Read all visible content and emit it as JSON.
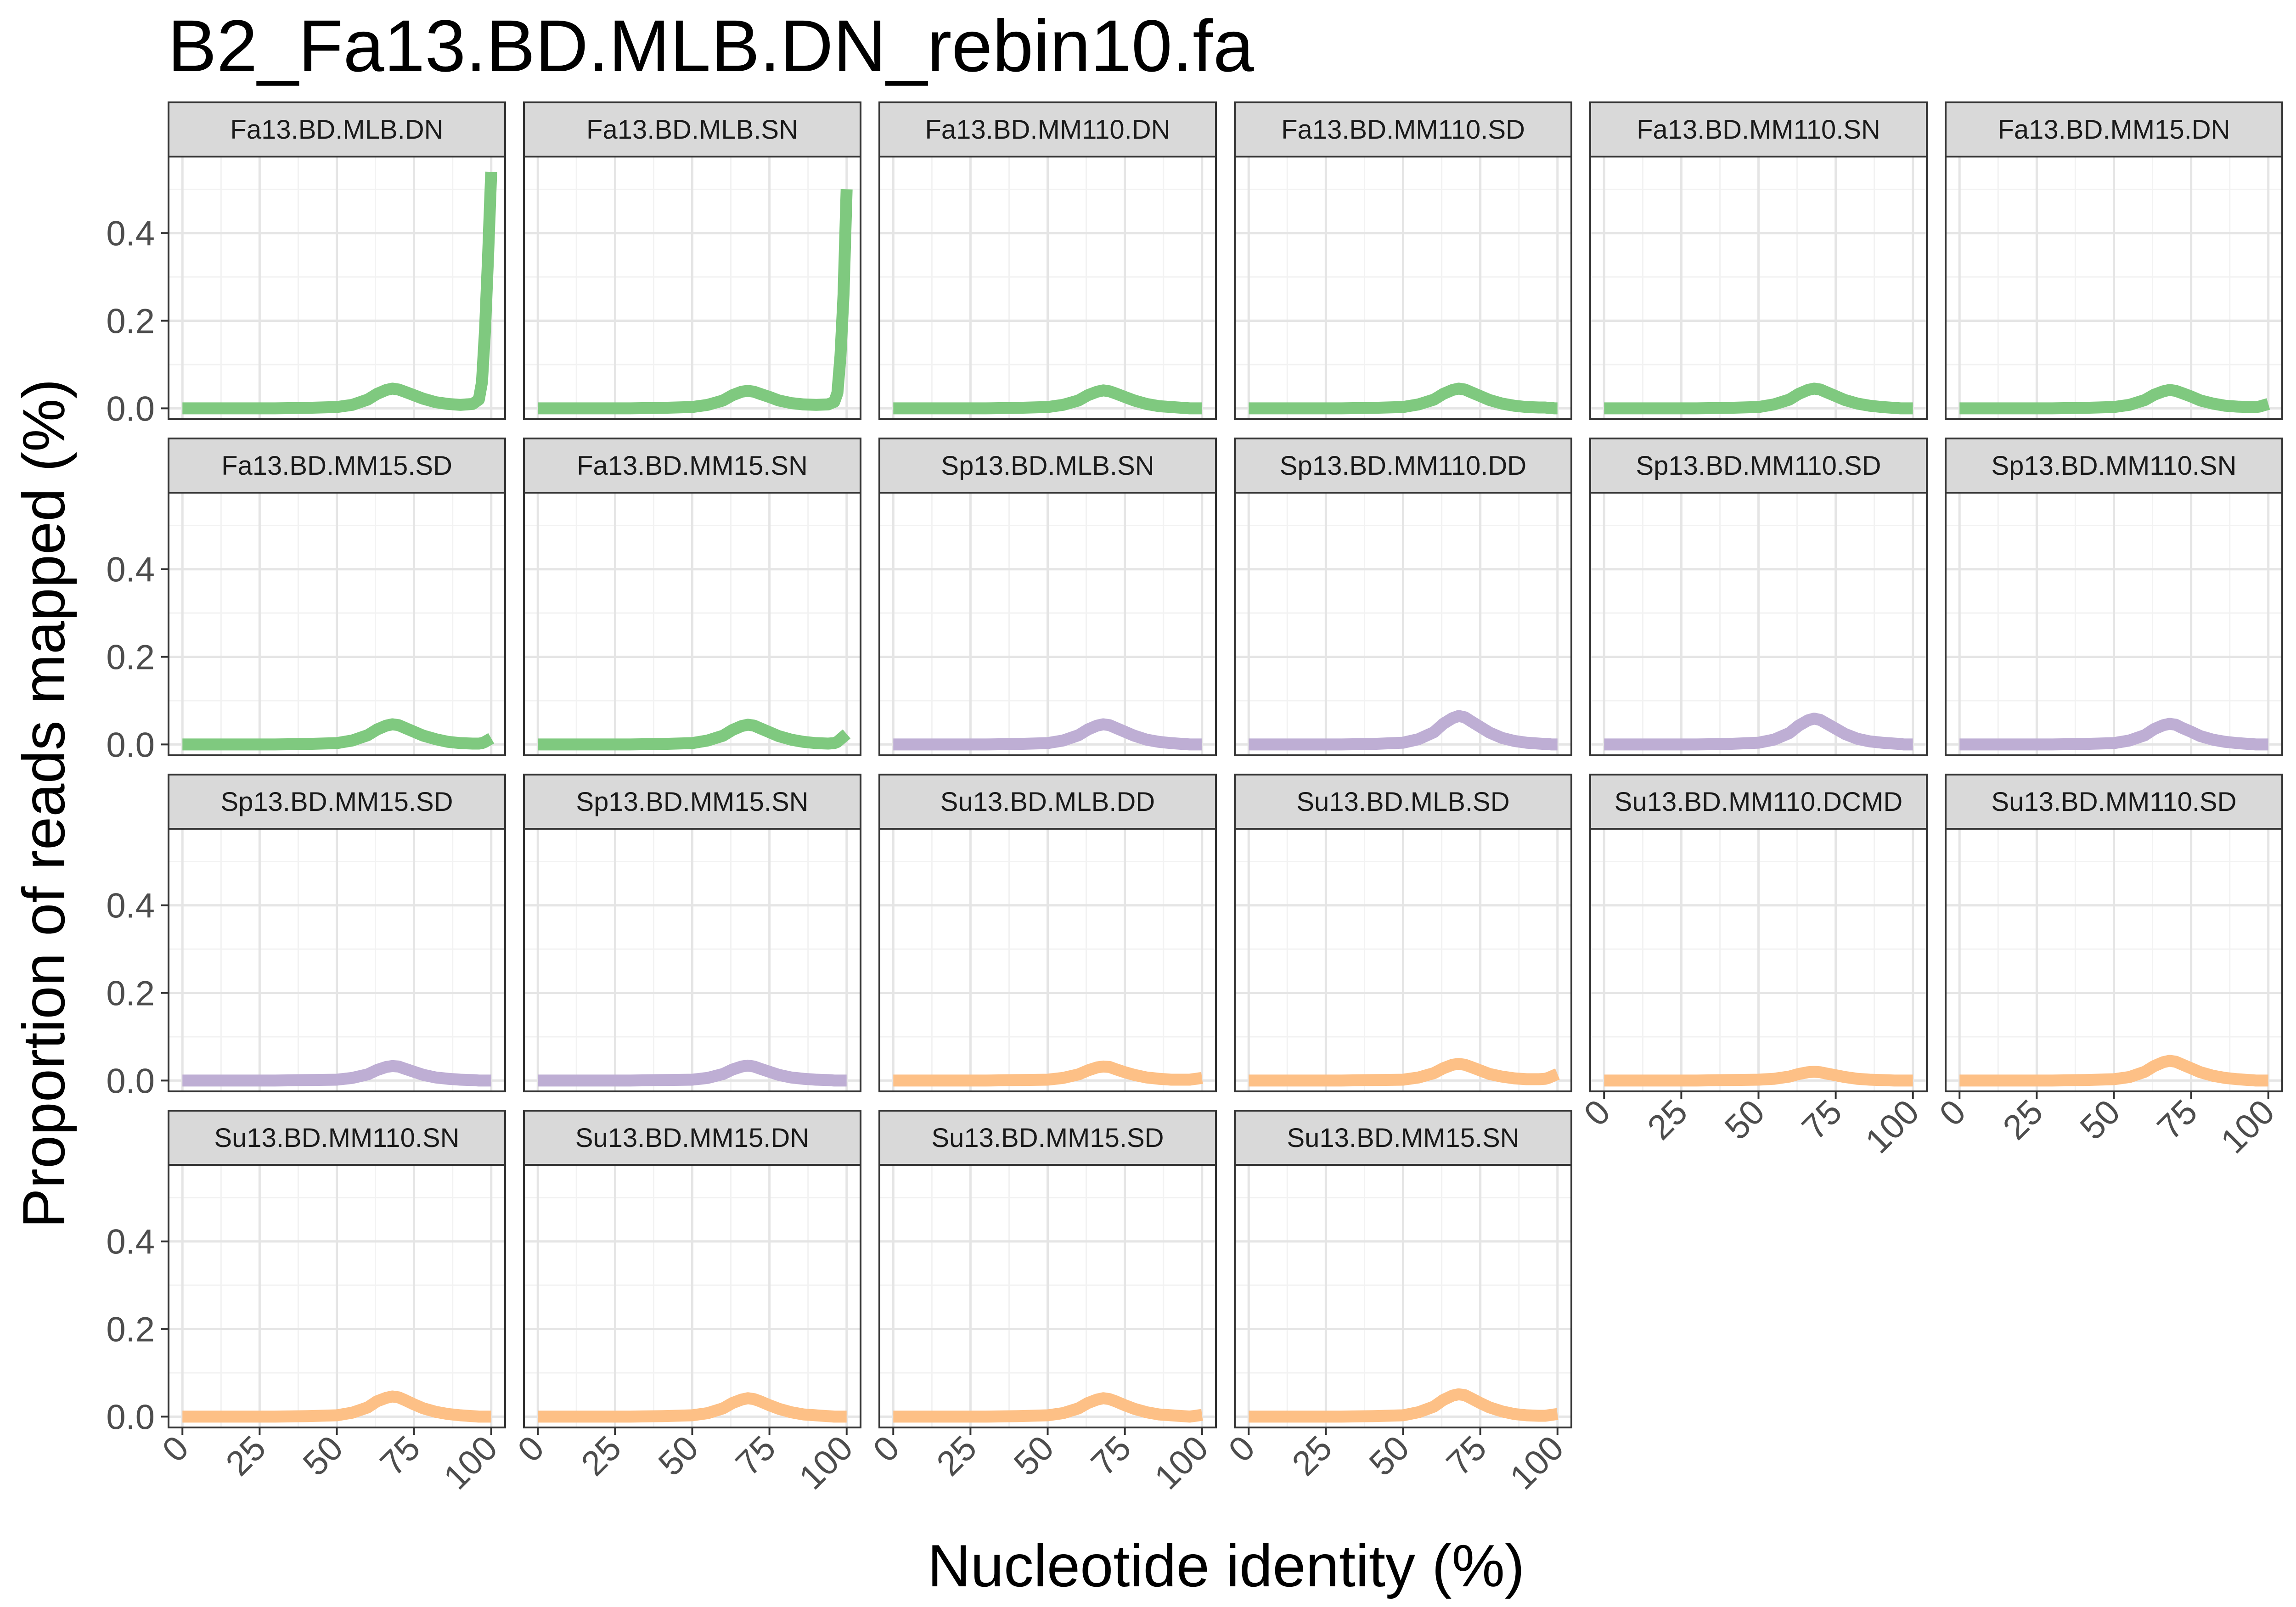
{
  "chart_data": {
    "type": "line",
    "title": "B2_Fa13.BD.MLB.DN_rebin10.fa",
    "xlabel": "Nucleotide identity (%)",
    "ylabel": "Proportion of reads mapped (%)",
    "xlim": [
      0,
      100
    ],
    "ylim": [
      0,
      0.55
    ],
    "x_ticks": [
      0,
      25,
      50,
      75,
      100
    ],
    "y_ticks": [
      0.0,
      0.2,
      0.4
    ],
    "y_tick_labels": [
      "0.0",
      "0.2",
      "0.4"
    ],
    "x": [
      0,
      10,
      20,
      30,
      40,
      50,
      55,
      60,
      63,
      66,
      68,
      70,
      72,
      75,
      78,
      82,
      86,
      90,
      94,
      96,
      97,
      98,
      99,
      100
    ],
    "colors": {
      "Fa": "#7fc97f",
      "Sp": "#beaed4",
      "Su": "#fdc086"
    },
    "panels": [
      {
        "name": "Fa13.BD.MLB.DN",
        "group": "Fa",
        "values": [
          0,
          0,
          0,
          0,
          0.001,
          0.003,
          0.008,
          0.02,
          0.033,
          0.042,
          0.045,
          0.043,
          0.038,
          0.03,
          0.022,
          0.014,
          0.01,
          0.008,
          0.01,
          0.02,
          0.06,
          0.18,
          0.35,
          0.54
        ]
      },
      {
        "name": "Fa13.BD.MLB.SN",
        "group": "Fa",
        "values": [
          0,
          0,
          0,
          0,
          0.001,
          0.003,
          0.008,
          0.018,
          0.03,
          0.038,
          0.04,
          0.038,
          0.033,
          0.026,
          0.018,
          0.012,
          0.009,
          0.008,
          0.009,
          0.015,
          0.035,
          0.12,
          0.26,
          0.5
        ]
      },
      {
        "name": "Fa13.BD.MM110.DN",
        "group": "Fa",
        "values": [
          0,
          0,
          0,
          0,
          0.001,
          0.003,
          0.008,
          0.018,
          0.03,
          0.038,
          0.041,
          0.039,
          0.034,
          0.026,
          0.018,
          0.01,
          0.005,
          0.003,
          0.001,
          0,
          0,
          0,
          0,
          0
        ]
      },
      {
        "name": "Fa13.BD.MM110.SD",
        "group": "Fa",
        "values": [
          0,
          0,
          0,
          0,
          0.001,
          0.003,
          0.009,
          0.02,
          0.033,
          0.042,
          0.045,
          0.043,
          0.037,
          0.028,
          0.019,
          0.011,
          0.006,
          0.003,
          0.002,
          0.002,
          0.001,
          0.001,
          0,
          0
        ]
      },
      {
        "name": "Fa13.BD.MM110.SN",
        "group": "Fa",
        "values": [
          0,
          0,
          0,
          0,
          0.001,
          0.003,
          0.009,
          0.02,
          0.033,
          0.042,
          0.045,
          0.043,
          0.037,
          0.028,
          0.019,
          0.011,
          0.006,
          0.003,
          0.001,
          0,
          0,
          0,
          0,
          0
        ]
      },
      {
        "name": "Fa13.BD.MM15.DN",
        "group": "Fa",
        "values": [
          0,
          0,
          0,
          0,
          0.001,
          0.003,
          0.008,
          0.019,
          0.031,
          0.039,
          0.042,
          0.04,
          0.035,
          0.027,
          0.018,
          0.011,
          0.006,
          0.004,
          0.003,
          0.003,
          0.004,
          0.006,
          0.008,
          0.01
        ]
      },
      {
        "name": "Fa13.BD.MM15.SD",
        "group": "Fa",
        "values": [
          0,
          0,
          0,
          0,
          0.001,
          0.003,
          0.009,
          0.021,
          0.034,
          0.043,
          0.046,
          0.044,
          0.038,
          0.029,
          0.02,
          0.012,
          0.006,
          0.003,
          0.002,
          0.002,
          0.003,
          0.006,
          0.01,
          0.014
        ]
      },
      {
        "name": "Fa13.BD.MM15.SN",
        "group": "Fa",
        "values": [
          0,
          0,
          0,
          0,
          0.001,
          0.003,
          0.009,
          0.02,
          0.033,
          0.042,
          0.045,
          0.043,
          0.037,
          0.028,
          0.019,
          0.011,
          0.006,
          0.003,
          0.002,
          0.003,
          0.006,
          0.012,
          0.018,
          0.024
        ]
      },
      {
        "name": "Sp13.BD.MLB.SN",
        "group": "Sp",
        "values": [
          0,
          0,
          0,
          0,
          0.001,
          0.003,
          0.009,
          0.021,
          0.034,
          0.043,
          0.046,
          0.044,
          0.038,
          0.029,
          0.02,
          0.011,
          0.006,
          0.003,
          0.001,
          0,
          0,
          0,
          0,
          0
        ]
      },
      {
        "name": "Sp13.BD.MM110.DD",
        "group": "Sp",
        "values": [
          0,
          0,
          0,
          0,
          0.001,
          0.004,
          0.012,
          0.028,
          0.047,
          0.06,
          0.065,
          0.062,
          0.053,
          0.04,
          0.027,
          0.015,
          0.008,
          0.004,
          0.002,
          0.001,
          0.001,
          0,
          0,
          0
        ]
      },
      {
        "name": "Sp13.BD.MM110.SD",
        "group": "Sp",
        "values": [
          0,
          0,
          0,
          0,
          0.001,
          0.004,
          0.011,
          0.026,
          0.043,
          0.055,
          0.059,
          0.056,
          0.048,
          0.036,
          0.024,
          0.013,
          0.007,
          0.004,
          0.002,
          0.001,
          0,
          0,
          0,
          0
        ]
      },
      {
        "name": "Sp13.BD.MM110.SN",
        "group": "Sp",
        "values": [
          0,
          0,
          0,
          0,
          0.001,
          0.003,
          0.009,
          0.021,
          0.035,
          0.044,
          0.047,
          0.045,
          0.038,
          0.029,
          0.019,
          0.011,
          0.006,
          0.003,
          0.001,
          0,
          0,
          0,
          0,
          0
        ]
      },
      {
        "name": "Sp13.BD.MM15.SD",
        "group": "Sp",
        "values": [
          0,
          0,
          0,
          0,
          0.001,
          0.002,
          0.006,
          0.014,
          0.024,
          0.031,
          0.033,
          0.032,
          0.027,
          0.02,
          0.013,
          0.007,
          0.004,
          0.002,
          0.001,
          0,
          0,
          0,
          0,
          0
        ]
      },
      {
        "name": "Sp13.BD.MM15.SN",
        "group": "Sp",
        "values": [
          0,
          0,
          0,
          0,
          0.001,
          0.002,
          0.006,
          0.015,
          0.025,
          0.032,
          0.034,
          0.032,
          0.027,
          0.02,
          0.013,
          0.007,
          0.004,
          0.002,
          0.001,
          0,
          0,
          0,
          0,
          0
        ]
      },
      {
        "name": "Su13.BD.MLB.DD",
        "group": "Su",
        "values": [
          0,
          0,
          0,
          0,
          0.001,
          0.002,
          0.006,
          0.014,
          0.023,
          0.03,
          0.032,
          0.031,
          0.026,
          0.019,
          0.013,
          0.007,
          0.004,
          0.002,
          0.002,
          0.002,
          0.003,
          0.004,
          0.005,
          0.006
        ]
      },
      {
        "name": "Su13.BD.MLB.SD",
        "group": "Su",
        "values": [
          0,
          0,
          0,
          0,
          0.001,
          0.002,
          0.007,
          0.017,
          0.028,
          0.036,
          0.038,
          0.036,
          0.031,
          0.023,
          0.015,
          0.009,
          0.005,
          0.003,
          0.003,
          0.004,
          0.006,
          0.009,
          0.012,
          0.015
        ]
      },
      {
        "name": "Su13.BD.MM110.DCMD",
        "group": "Su",
        "values": [
          0,
          0,
          0,
          0,
          0.001,
          0.002,
          0.004,
          0.009,
          0.015,
          0.019,
          0.02,
          0.019,
          0.016,
          0.012,
          0.008,
          0.004,
          0.002,
          0.001,
          0,
          0,
          0,
          0,
          0,
          0
        ]
      },
      {
        "name": "Su13.BD.MM110.SD",
        "group": "Su",
        "values": [
          0,
          0,
          0,
          0,
          0.001,
          0.003,
          0.008,
          0.02,
          0.033,
          0.042,
          0.045,
          0.043,
          0.037,
          0.028,
          0.019,
          0.011,
          0.006,
          0.003,
          0.001,
          0,
          0,
          0,
          0,
          0
        ]
      },
      {
        "name": "Su13.BD.MM110.SN",
        "group": "Su",
        "values": [
          0,
          0,
          0,
          0,
          0.001,
          0.003,
          0.009,
          0.021,
          0.035,
          0.043,
          0.046,
          0.044,
          0.038,
          0.028,
          0.019,
          0.011,
          0.006,
          0.003,
          0.001,
          0,
          0,
          0,
          0,
          0
        ]
      },
      {
        "name": "Su13.BD.MM15.DN",
        "group": "Su",
        "values": [
          0,
          0,
          0,
          0,
          0.001,
          0.003,
          0.008,
          0.019,
          0.031,
          0.039,
          0.042,
          0.04,
          0.035,
          0.026,
          0.018,
          0.01,
          0.005,
          0.003,
          0.001,
          0,
          0,
          0,
          0,
          0
        ]
      },
      {
        "name": "Su13.BD.MM15.SD",
        "group": "Su",
        "values": [
          0,
          0,
          0,
          0,
          0.001,
          0.003,
          0.008,
          0.019,
          0.031,
          0.039,
          0.042,
          0.04,
          0.035,
          0.026,
          0.018,
          0.01,
          0.005,
          0.003,
          0.001,
          0,
          0.001,
          0.002,
          0.003,
          0.004
        ]
      },
      {
        "name": "Su13.BD.MM15.SN",
        "group": "Su",
        "values": [
          0,
          0,
          0,
          0,
          0.001,
          0.003,
          0.01,
          0.023,
          0.038,
          0.048,
          0.051,
          0.049,
          0.042,
          0.031,
          0.021,
          0.012,
          0.006,
          0.003,
          0.002,
          0.002,
          0.003,
          0.004,
          0.005,
          0.006
        ]
      }
    ]
  }
}
